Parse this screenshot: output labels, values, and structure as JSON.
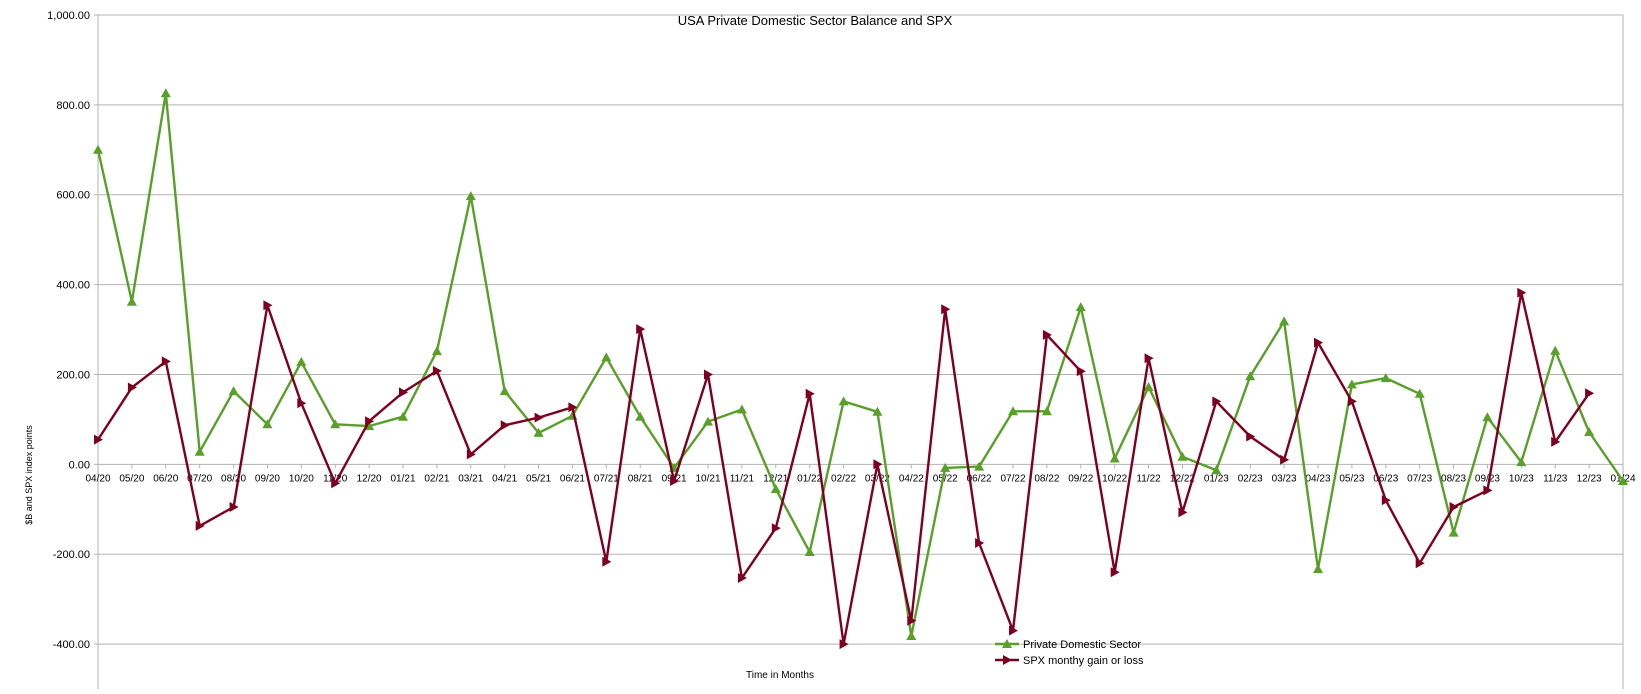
{
  "chart_data": {
    "type": "line",
    "title": "USA Private Domestic Sector Balance and SPX",
    "xlabel": "Time in Months",
    "ylabel": "$B and SPX index points",
    "ylim": [
      -500,
      1000
    ],
    "y_ticks": [
      1000,
      800,
      600,
      400,
      200,
      0,
      -200,
      -400
    ],
    "y_tick_labels": [
      "1,000.00",
      "800.00",
      "600.00",
      "400.00",
      "200.00",
      "0.00",
      "-200.00",
      "-400.00"
    ],
    "grid": true,
    "legend_position": "bottom-center",
    "categories": [
      "04/20",
      "05/20",
      "06/20",
      "07/20",
      "08/20",
      "09/20",
      "10/20",
      "11/20",
      "12/20",
      "01/21",
      "02/21",
      "03/21",
      "04/21",
      "05/21",
      "06/21",
      "07/21",
      "08/21",
      "09/21",
      "10/21",
      "11/21",
      "12/21",
      "01/22",
      "02/22",
      "03/22",
      "04/22",
      "05/22",
      "06/22",
      "07/22",
      "08/22",
      "09/22",
      "10/22",
      "11/22",
      "12/22",
      "01/23",
      "02/23",
      "03/23",
      "04/23",
      "05/23",
      "06/23",
      "07/23",
      "08/23",
      "09/23",
      "10/23",
      "11/23",
      "12/23",
      "01/24"
    ],
    "series": [
      {
        "name": "Private Domestic Sector",
        "color": "#58a029",
        "marker": "triangle-up",
        "values": [
          700,
          362,
          826,
          28,
          163,
          89,
          228,
          89,
          85,
          106,
          252,
          597,
          163,
          70,
          108,
          238,
          106,
          -8,
          95,
          122,
          -55,
          -195,
          140,
          117,
          -382,
          -8,
          -5,
          118,
          118,
          350,
          13,
          172,
          17,
          -13,
          196,
          318,
          -233,
          178,
          192,
          157,
          -152,
          105,
          5,
          253,
          72,
          -37
        ]
      },
      {
        "name": "SPX monthy gain or loss",
        "color": "#7e0021",
        "marker": "triangle-right",
        "values": [
          55,
          171,
          229,
          -137,
          -95,
          354,
          136,
          -42,
          96,
          160,
          208,
          22,
          87,
          104,
          127,
          -217,
          301,
          -37,
          200,
          -253,
          -142,
          157,
          -400,
          0,
          -348,
          345,
          -175,
          -370,
          288,
          207,
          -240,
          236,
          -107,
          140,
          62,
          10,
          271,
          140,
          -80,
          -220,
          -95,
          -58,
          382,
          50,
          158,
          null
        ]
      }
    ]
  }
}
